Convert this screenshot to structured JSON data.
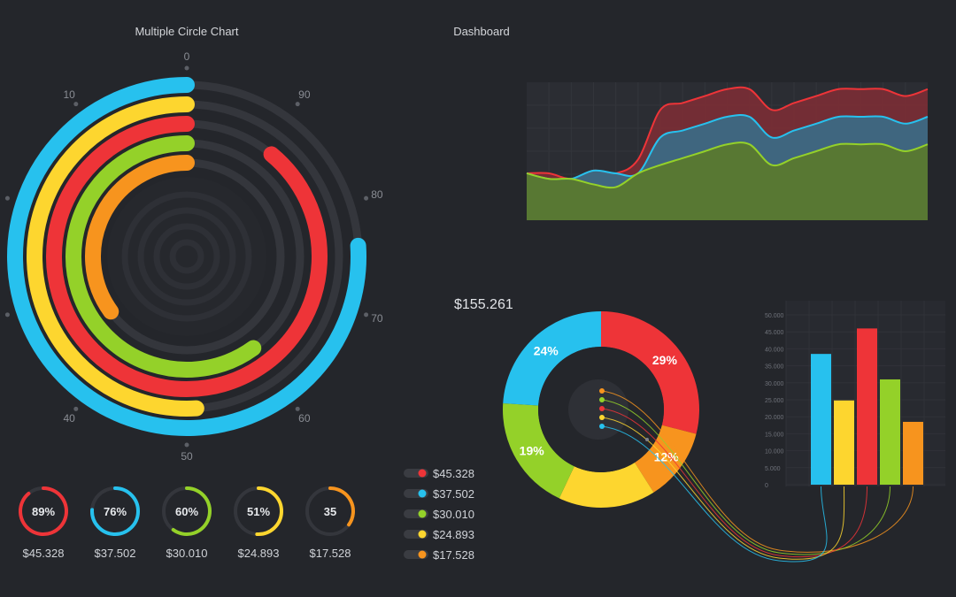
{
  "titles": {
    "circle_chart": "Multiple Circle Chart",
    "dashboard": "Dashboard"
  },
  "colors": {
    "background": "#24262b",
    "track": "#34363c",
    "red": "#ee3438",
    "blue": "#27c1ee",
    "green": "#94d129",
    "yellow": "#fdd62f",
    "orange": "#f7941e"
  },
  "total": {
    "amount": "$155.261"
  },
  "chart_data": [
    {
      "type": "radial-bar",
      "title": "Multiple Circle Chart",
      "dial_labels": [
        "0",
        "90",
        "80",
        "70",
        "60",
        "50",
        "40",
        "10"
      ],
      "scale_max": 100,
      "rings": [
        {
          "color": "blue",
          "percent": 76
        },
        {
          "color": "yellow",
          "percent": 51
        },
        {
          "color": "red",
          "percent": 89
        },
        {
          "color": "green",
          "percent": 60
        },
        {
          "color": "orange",
          "percent": 35
        }
      ]
    },
    {
      "type": "area",
      "title": "Dashboard",
      "x": [
        0,
        1,
        2,
        3,
        4,
        5,
        6,
        7,
        8,
        9,
        10,
        11,
        12,
        13,
        14,
        15,
        16,
        17,
        18
      ],
      "series": [
        {
          "color": "red",
          "values": [
            0.66,
            0.66,
            0.7,
            0.64,
            0.66,
            0.56,
            0.2,
            0.15,
            0.1,
            0.05,
            0.05,
            0.2,
            0.15,
            0.1,
            0.05,
            0.05,
            0.05,
            0.1,
            0.05
          ]
        },
        {
          "color": "blue",
          "values": [
            0.66,
            0.7,
            0.7,
            0.64,
            0.66,
            0.66,
            0.4,
            0.35,
            0.3,
            0.25,
            0.25,
            0.4,
            0.35,
            0.3,
            0.25,
            0.25,
            0.25,
            0.3,
            0.25
          ]
        },
        {
          "color": "green",
          "values": [
            0.66,
            0.7,
            0.7,
            0.74,
            0.76,
            0.66,
            0.6,
            0.55,
            0.5,
            0.45,
            0.45,
            0.6,
            0.55,
            0.5,
            0.45,
            0.45,
            0.45,
            0.5,
            0.45
          ]
        }
      ]
    },
    {
      "type": "pie",
      "slices": [
        {
          "label": "29%",
          "value": 29,
          "color": "red"
        },
        {
          "label": "12%",
          "value": 12,
          "color": "orange"
        },
        {
          "label": "",
          "value": 16,
          "color": "yellow"
        },
        {
          "label": "19%",
          "value": 19,
          "color": "green"
        },
        {
          "label": "24%",
          "value": 24,
          "color": "blue"
        }
      ]
    },
    {
      "type": "bar",
      "y_ticks": [
        "50.000",
        "45.000",
        "40.000",
        "35.000",
        "30.000",
        "25.000",
        "20.000",
        "15.000",
        "10.000",
        "5.000",
        "0"
      ],
      "ylim": [
        0,
        50000
      ],
      "bars": [
        {
          "color": "blue",
          "value": 38500
        },
        {
          "color": "yellow",
          "value": 24800
        },
        {
          "color": "red",
          "value": 46000
        },
        {
          "color": "green",
          "value": 31000
        },
        {
          "color": "orange",
          "value": 18500
        }
      ]
    }
  ],
  "mini_gauges": [
    {
      "label": "89%",
      "amount": "$45.328",
      "color": "red",
      "percent": 89
    },
    {
      "label": "76%",
      "amount": "$37.502",
      "color": "blue",
      "percent": 76
    },
    {
      "label": "60%",
      "amount": "$30.010",
      "color": "green",
      "percent": 60
    },
    {
      "label": "51%",
      "amount": "$24.893",
      "color": "yellow",
      "percent": 51
    },
    {
      "label": "35",
      "amount": "$17.528",
      "color": "orange",
      "percent": 35
    }
  ],
  "legend": [
    {
      "amount": "$45.328",
      "color": "red"
    },
    {
      "amount": "$37.502",
      "color": "blue"
    },
    {
      "amount": "$30.010",
      "color": "green"
    },
    {
      "amount": "$24.893",
      "color": "yellow"
    },
    {
      "amount": "$17.528",
      "color": "orange"
    }
  ]
}
